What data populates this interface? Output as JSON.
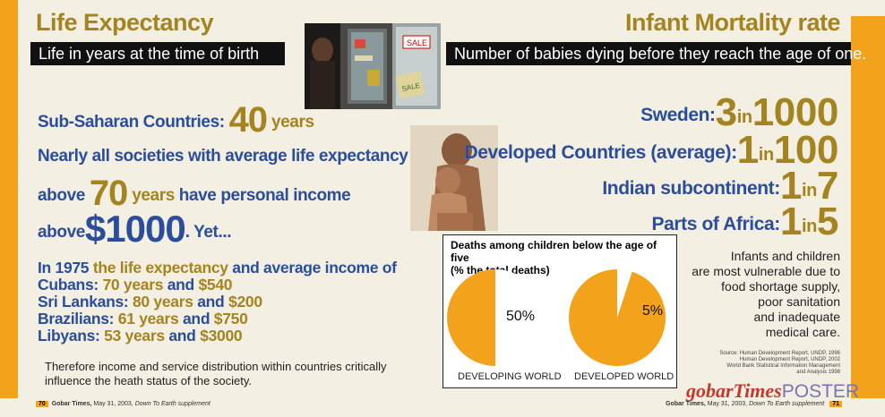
{
  "left": {
    "title": "Life Expectancy",
    "subtitle": "Life in years at the time of birth",
    "line1": {
      "label": "Sub-Saharan Countries:",
      "num": "40",
      "unit": "years"
    },
    "line2": "Nearly all societies with average life expectancy",
    "line3": {
      "pre": "above",
      "num": "70",
      "unit": "years",
      "post": "have personal income"
    },
    "line4": {
      "pre": "above",
      "num": "$1000",
      "post": ". Yet..."
    },
    "facts": {
      "intro_a": "In 1975",
      "intro_b": "the life expectancy",
      "intro_c": "and average income of",
      "rows": [
        {
          "country": "Cubans:",
          "years": "70 years",
          "and": "and",
          "income": "$540"
        },
        {
          "country": "Sri Lankans:",
          "years": "80 years",
          "and": "and",
          "income": "$200"
        },
        {
          "country": "Brazilians:",
          "years": "61 years",
          "and": "and",
          "income": "$750"
        },
        {
          "country": "Libyans:",
          "years": "53 years",
          "and": "and",
          "income": "$3000"
        }
      ]
    },
    "conclusion_1": "Therefore income and service distribution within countries critically",
    "conclusion_2": "influence the heath status of the society.",
    "footer_page": "70",
    "footer_brand": "Gobar Times,",
    "footer_date": "May 31, 2003,",
    "footer_supp": "Down To Earth supplement"
  },
  "right": {
    "title": "Infant Mortality rate",
    "subtitle": "Number of babies dying before they reach the age of one.",
    "stats": [
      {
        "label": "Sweden:",
        "a": "3",
        "in": "in",
        "b": "1000"
      },
      {
        "label": "Developed Countries (average):",
        "a": "1",
        "in": "in",
        "b": "100"
      },
      {
        "label": "Indian subcontinent:",
        "a": "1",
        "in": "in",
        "b": "7"
      },
      {
        "label": "Parts of Africa:",
        "a": "1",
        "in": "in",
        "b": "5"
      }
    ],
    "info": [
      "Infants and children",
      "are most vulnerable due to",
      "food shortage supply,",
      "poor sanitation",
      "and inadequate",
      "medical care."
    ],
    "source": [
      "Source: Human Development Report, UNDP, 1996",
      "Human Development Report, UNDP, 2002",
      "World Bank Statistical Information Management",
      "and Analysis 1998"
    ],
    "logo_a": "gobarTimes",
    "logo_b": "POSTER",
    "footer_brand": "Gobar Times,",
    "footer_date": "May 31, 2003,",
    "footer_supp": "Down To Earth supplement",
    "footer_page": "71"
  },
  "photo_store": {
    "sign_1": "SALE",
    "sign_2": "SALE"
  },
  "chart_data": {
    "type": "pie",
    "title": "Deaths among children below the age of five",
    "subtitle": "(% the total deaths)",
    "pies": [
      {
        "label": "DEVELOPING WORLD",
        "value": 50,
        "value_label": "50%"
      },
      {
        "label": "DEVELOPED WORLD",
        "value": 5,
        "value_label": "5%"
      }
    ],
    "colors": {
      "fill": "#f3a21b",
      "rest": "#ffffff"
    }
  },
  "colors": {
    "accent": "#f3a21b",
    "gold": "#a48421",
    "blue": "#2a4e9b",
    "bg": "#f3efe2"
  }
}
